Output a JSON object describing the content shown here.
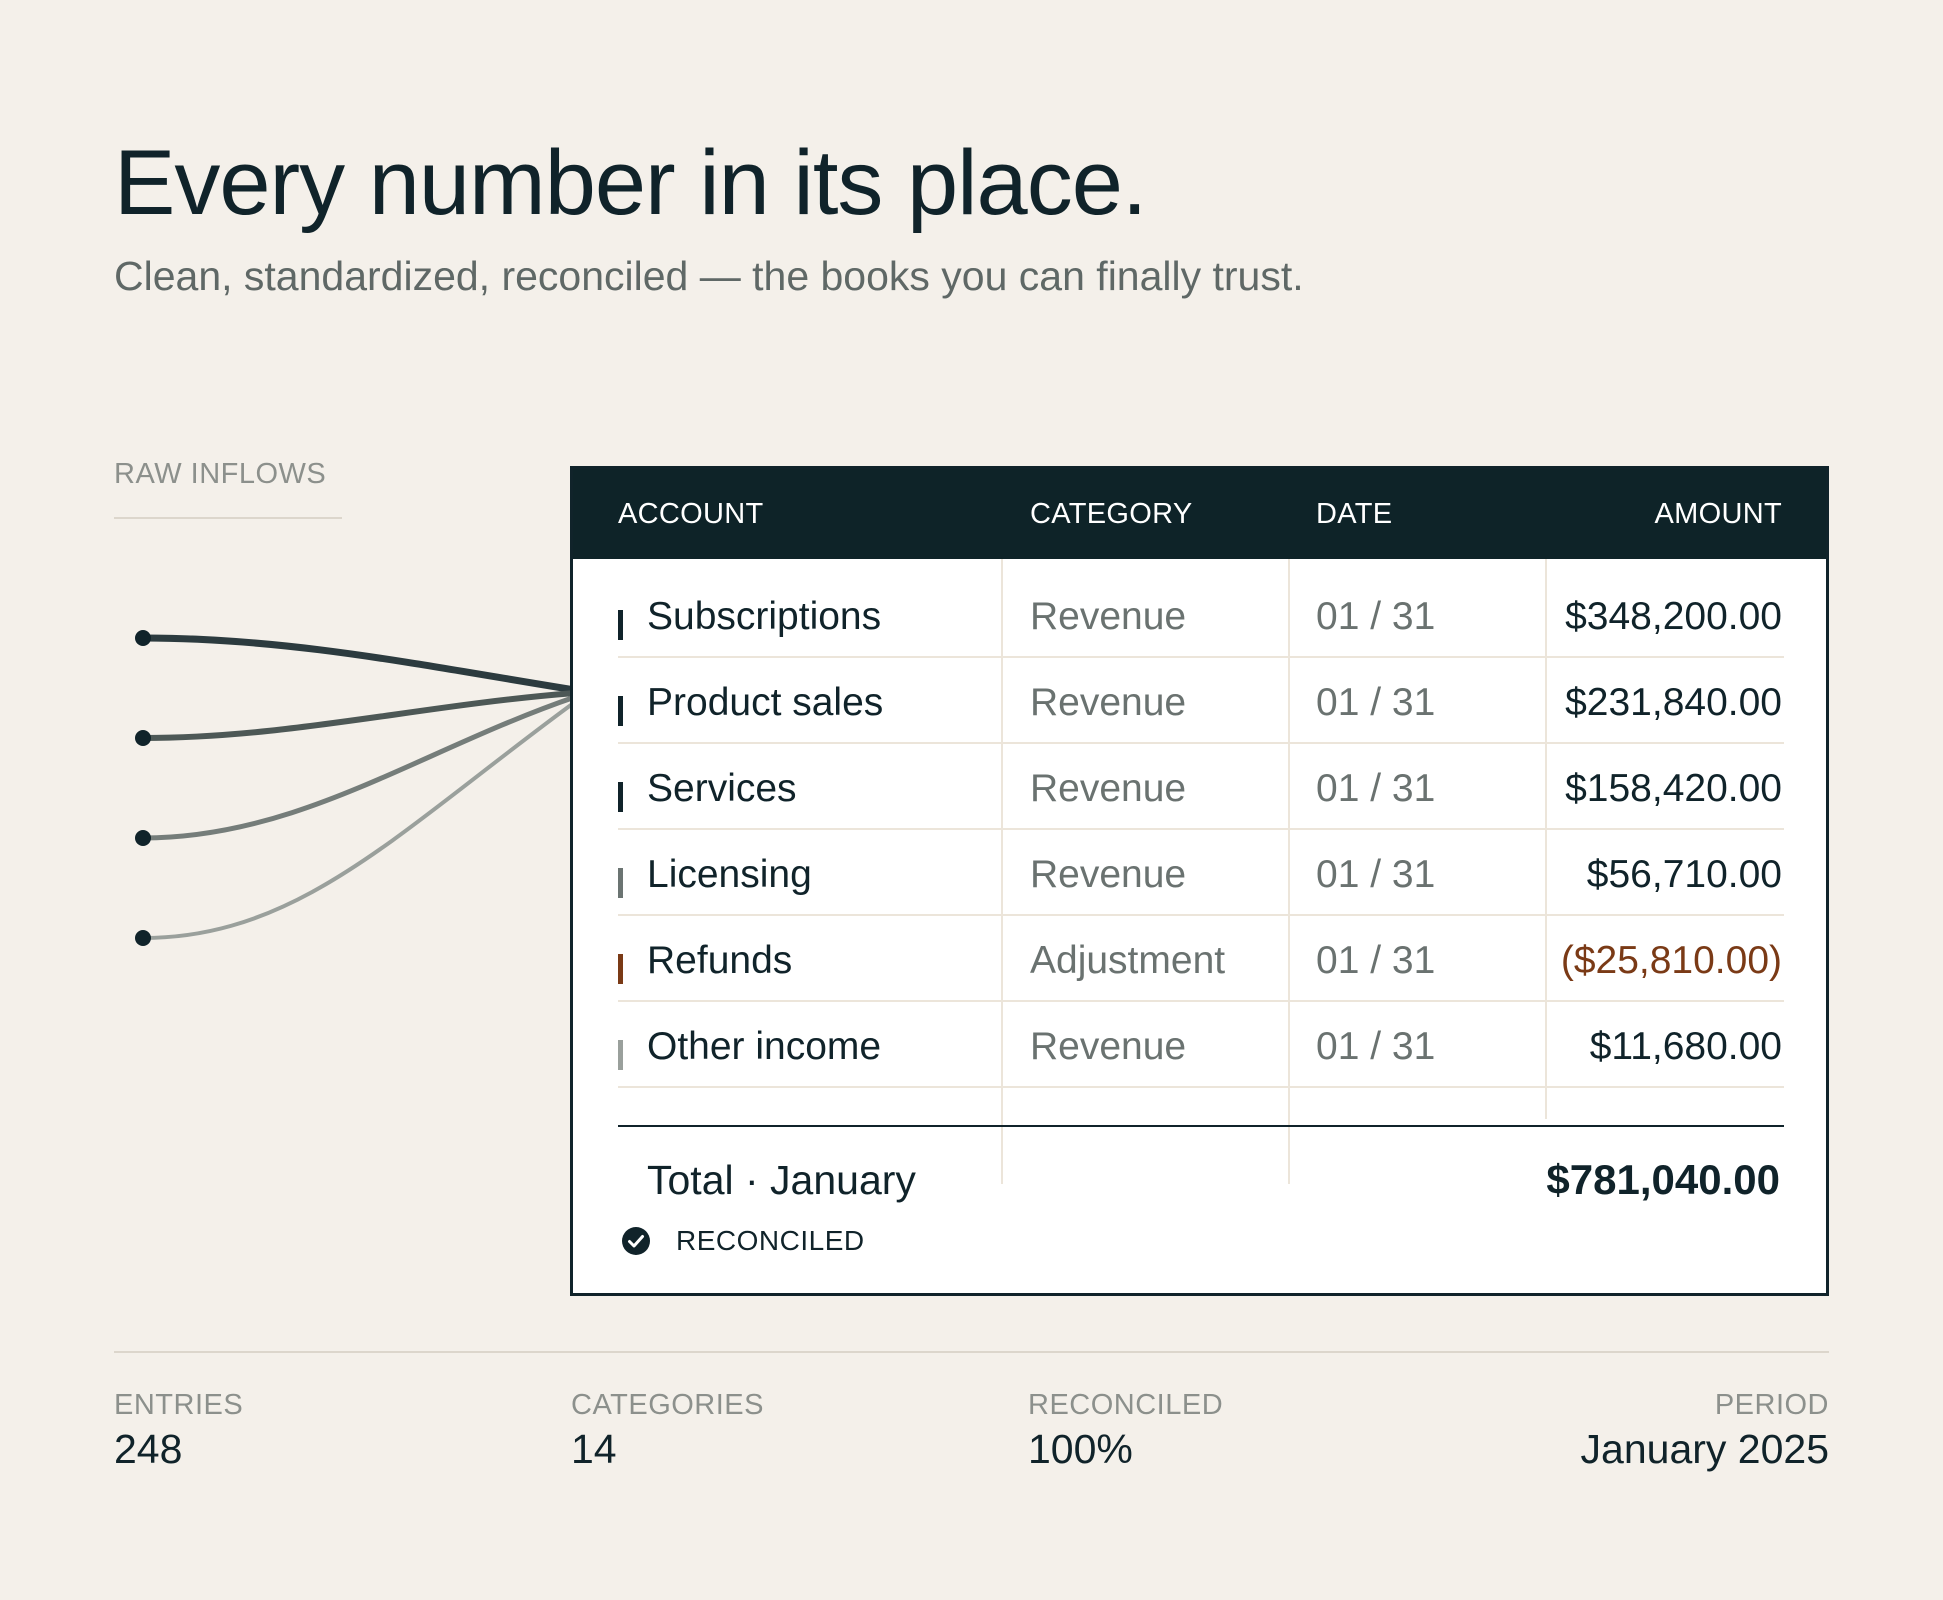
{
  "header": {
    "title": "Every number in its place.",
    "subtitle": "Clean, standardized, reconciled — the books you can finally trust."
  },
  "raw_inflows": {
    "label": "RAW INFLOWS"
  },
  "ledger": {
    "columns": [
      "ACCOUNT",
      "CATEGORY",
      "DATE",
      "AMOUNT"
    ],
    "rows": [
      {
        "account": "Subscriptions",
        "category": "Revenue",
        "date": "01 / 31",
        "amount": "$348,200.00",
        "marker_color": "#10232a",
        "amount_color": "#10232a"
      },
      {
        "account": "Product sales",
        "category": "Revenue",
        "date": "01 / 31",
        "amount": "$231,840.00",
        "marker_color": "#10232a",
        "amount_color": "#10232a"
      },
      {
        "account": "Services",
        "category": "Revenue",
        "date": "01 / 31",
        "amount": "$158,420.00",
        "marker_color": "#10232a",
        "amount_color": "#10232a"
      },
      {
        "account": "Licensing",
        "category": "Revenue",
        "date": "01 / 31",
        "amount": "$56,710.00",
        "marker_color": "#6b7472",
        "amount_color": "#10232a"
      },
      {
        "account": "Refunds",
        "category": "Adjustment",
        "date": "01 / 31",
        "amount": "($25,810.00)",
        "marker_color": "#7a3a16",
        "amount_color": "#7a3a16"
      },
      {
        "account": "Other income",
        "category": "Revenue",
        "date": "01 / 31",
        "amount": "$11,680.00",
        "marker_color": "#9aa09c",
        "amount_color": "#10232a"
      }
    ],
    "total_label": "Total · January",
    "total_amount": "$781,040.00",
    "status": "RECONCILED"
  },
  "stats": [
    {
      "label": "ENTRIES",
      "value": "248"
    },
    {
      "label": "CATEGORIES",
      "value": "14"
    },
    {
      "label": "RECONCILED",
      "value": "100%"
    },
    {
      "label": "PERIOD",
      "value": "January 2025"
    }
  ],
  "colors": {
    "background": "#f4f0ea",
    "ink": "#10232a",
    "header_bg": "#0e2328",
    "negative": "#7a3a16"
  }
}
